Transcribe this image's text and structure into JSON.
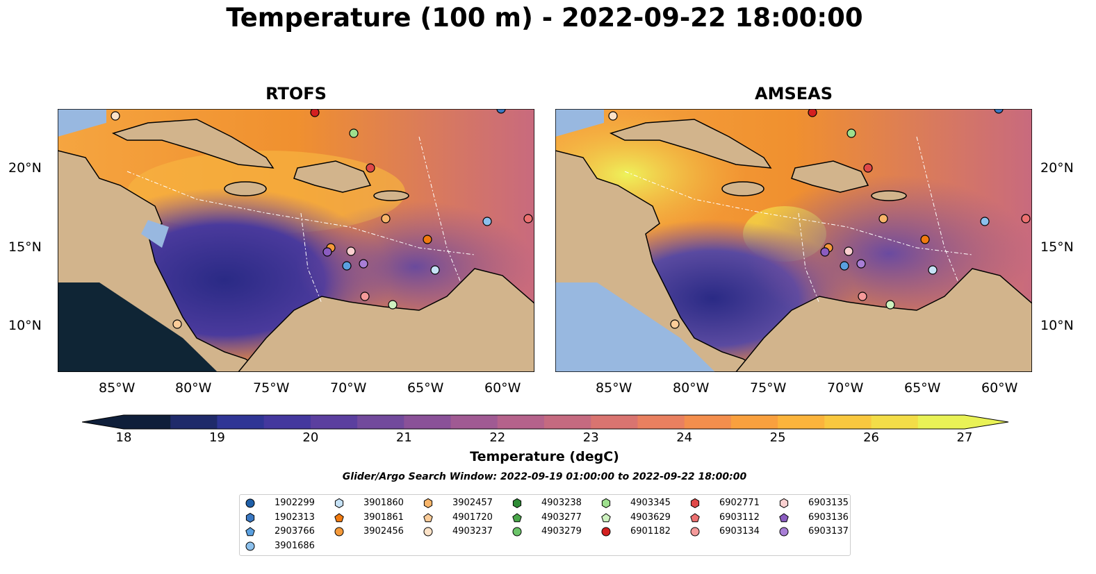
{
  "title": "Temperature (100 m) - 2022-09-22 18:00:00",
  "panels": [
    {
      "title": "RTOFS"
    },
    {
      "title": "AMSEAS"
    }
  ],
  "axes": {
    "lon_ticks": [
      "85°W",
      "80°W",
      "75°W",
      "70°W",
      "65°W",
      "60°W"
    ],
    "lat_ticks": [
      "20°N",
      "15°N",
      "10°N"
    ]
  },
  "colorbar": {
    "label": "Temperature (degC)",
    "ticks": [
      "18",
      "19",
      "20",
      "21",
      "22",
      "23",
      "24",
      "25",
      "26",
      "27"
    ],
    "colors": [
      "#0f1f3a",
      "#1f2a6a",
      "#2f3595",
      "#44389e",
      "#5b3f9f",
      "#724a9c",
      "#8a5198",
      "#a05a93",
      "#b5628b",
      "#c56a80",
      "#d97470",
      "#e98060",
      "#f38e4d",
      "#f9a03e",
      "#fbb43c",
      "#f9c83f",
      "#f3dd48",
      "#e9f256"
    ]
  },
  "search_window": "Glider/Argo Search Window: 2022-09-19 01:00:00 to 2022-09-22 18:00:00",
  "legend": [
    {
      "id": "1902299",
      "shape": "circle",
      "color": "#1f5fa8"
    },
    {
      "id": "1902313",
      "shape": "hexagon",
      "color": "#3a78c2"
    },
    {
      "id": "2903766",
      "shape": "pentagon",
      "color": "#5aa0e0"
    },
    {
      "id": "3901686",
      "shape": "circle",
      "color": "#8cc0ec"
    },
    {
      "id": "3901860",
      "shape": "hexagon",
      "color": "#c6e2f6"
    },
    {
      "id": "3901861",
      "shape": "pentagon",
      "color": "#f07a10"
    },
    {
      "id": "3902456",
      "shape": "circle",
      "color": "#f59a3a"
    },
    {
      "id": "3902457",
      "shape": "hexagon",
      "color": "#f8b56a"
    },
    {
      "id": "4901720",
      "shape": "pentagon",
      "color": "#fbcc99"
    },
    {
      "id": "4903237",
      "shape": "circle",
      "color": "#fde3c8"
    },
    {
      "id": "4903238",
      "shape": "hexagon",
      "color": "#2e8b35"
    },
    {
      "id": "4903277",
      "shape": "pentagon",
      "color": "#4aa64a"
    },
    {
      "id": "4903279",
      "shape": "circle",
      "color": "#6cc56a"
    },
    {
      "id": "4903345",
      "shape": "hexagon",
      "color": "#9ee08e"
    },
    {
      "id": "4903629",
      "shape": "pentagon",
      "color": "#cef2c0"
    },
    {
      "id": "6901182",
      "shape": "circle",
      "color": "#d42020"
    },
    {
      "id": "6902771",
      "shape": "hexagon",
      "color": "#e04848"
    },
    {
      "id": "6903112",
      "shape": "pentagon",
      "color": "#ec7070"
    },
    {
      "id": "6903134",
      "shape": "circle",
      "color": "#f49a9a"
    },
    {
      "id": "6903135",
      "shape": "hexagon",
      "color": "#fbd0d0"
    },
    {
      "id": "6903136",
      "shape": "pentagon",
      "color": "#8a5cc0"
    },
    {
      "id": "6903137",
      "shape": "circle",
      "color": "#a87ed6"
    }
  ],
  "colors": {
    "land": "#d2b48c",
    "ocean": "#98b8e0",
    "coast": "#000000"
  }
}
